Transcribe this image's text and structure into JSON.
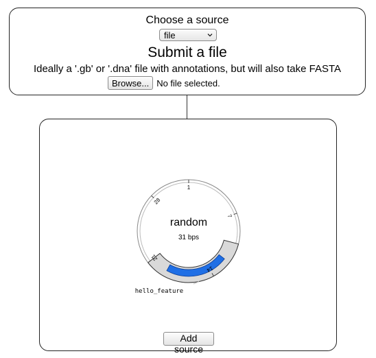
{
  "source_panel": {
    "choose_label": "Choose a source",
    "select": {
      "value": "file",
      "options": [
        "file"
      ]
    },
    "heading": "Submit a file",
    "description": "Ideally a '.gb' or '.dna' file with annotations, but will also take FASTA",
    "browse_label": "Browse...",
    "file_status": "No file selected."
  },
  "plasmid_map": {
    "name": "random",
    "length_label": "31 bps",
    "ticks": [
      {
        "label": "1",
        "bp": 1
      },
      {
        "label": "7",
        "bp": 7
      },
      {
        "label": "14",
        "bp": 14
      },
      {
        "label": "21",
        "bp": 21
      },
      {
        "label": "28",
        "bp": 28
      }
    ],
    "total_bp": 31,
    "feature": {
      "name": "hello_feature",
      "color": "#1f6fe5",
      "start_bp": 12,
      "end_bp": 19
    },
    "selection": {
      "start_bp": 10,
      "end_bp": 21,
      "color": "#d9d9d9"
    }
  },
  "actions": {
    "add_source_label": "Add source"
  }
}
